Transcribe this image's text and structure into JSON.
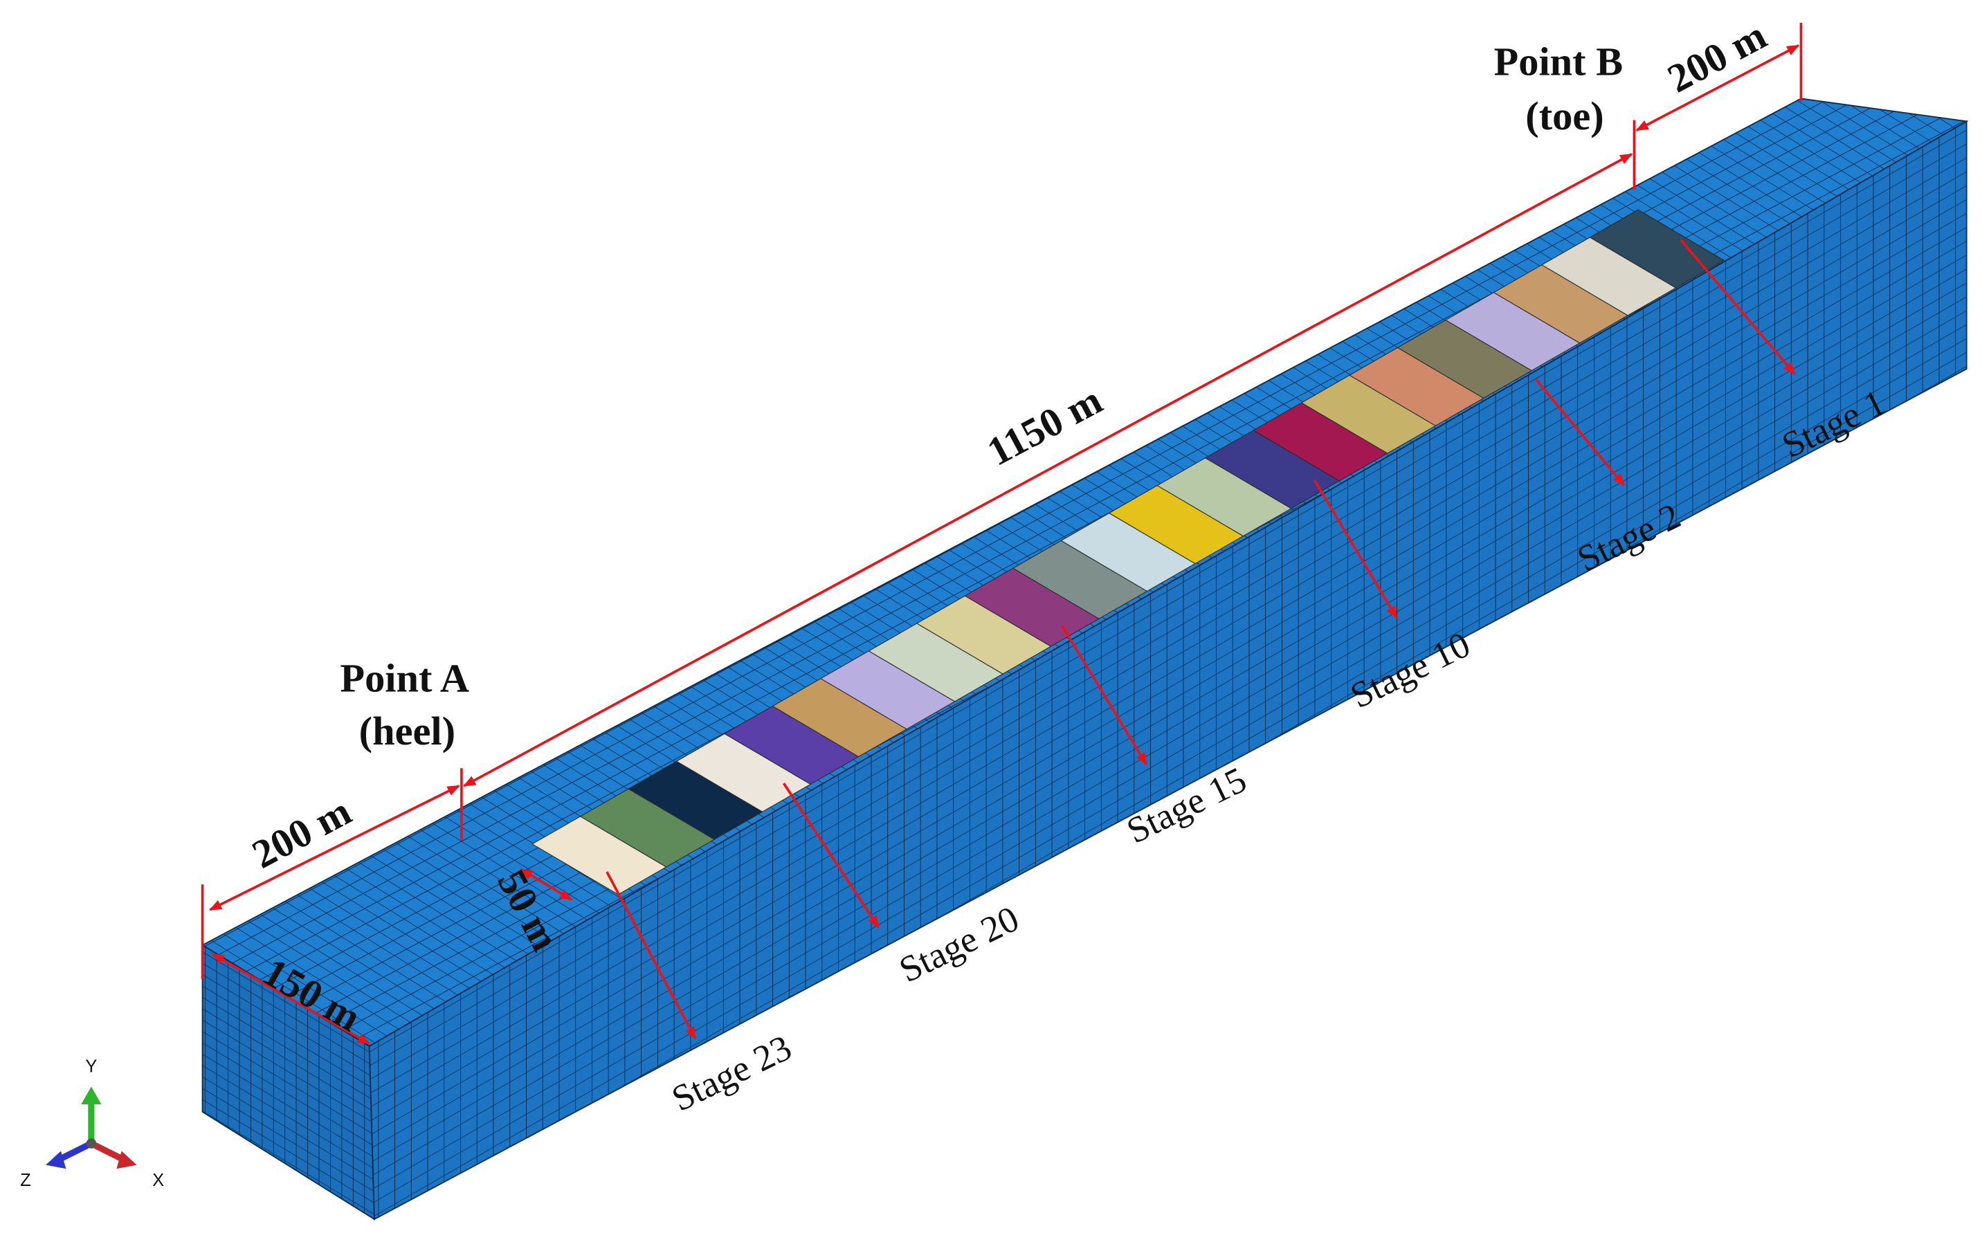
{
  "dimensions": {
    "left_length": "200 m",
    "right_length": "200 m",
    "wellbore_length": "1150 m",
    "width": "150 m",
    "stage_spacing": "50 m"
  },
  "points": [
    {
      "label": "Point A",
      "note": "(heel)"
    },
    {
      "label": "Point B",
      "note": "(toe)"
    }
  ],
  "stages": [
    "Stage 1",
    "Stage 2",
    "Stage 10",
    "Stage 15",
    "Stage 20",
    "Stage 23"
  ],
  "axes": {
    "y": "Y",
    "z": "Z",
    "x": "X"
  }
}
